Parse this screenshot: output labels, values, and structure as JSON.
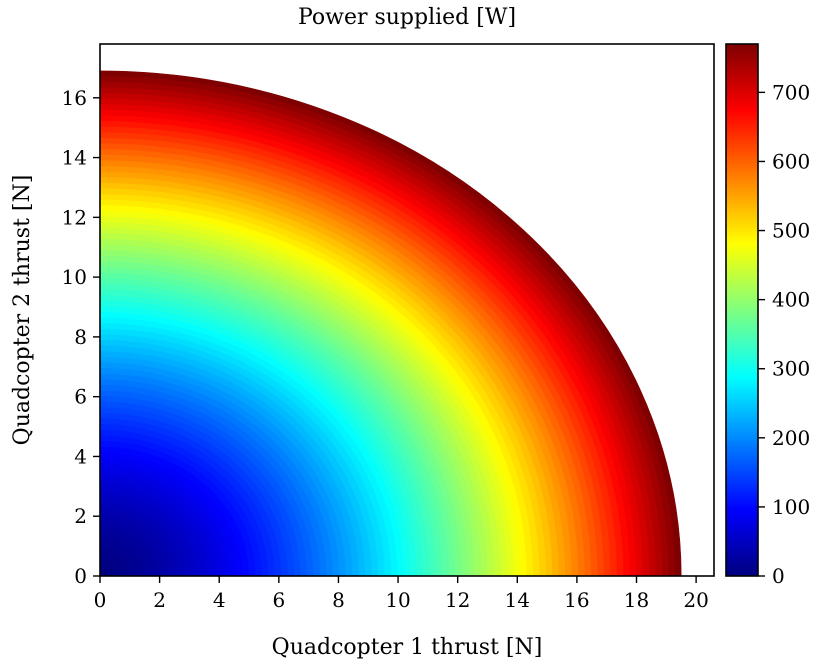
{
  "chart_data": {
    "type": "heatmap",
    "title": "Power supplied [W]",
    "xlabel": "Quadcopter 1 thrust [N]",
    "ylabel": "Quadcopter 2 thrust [N]",
    "xlim": [
      0,
      20.6
    ],
    "ylim": [
      0,
      17.8
    ],
    "x_ticks": [
      0,
      2,
      4,
      6,
      8,
      10,
      12,
      14,
      16,
      18,
      20
    ],
    "y_ticks": [
      0,
      2,
      4,
      6,
      8,
      10,
      12,
      14,
      16
    ],
    "x_tick_labels": [
      "0",
      "2",
      "4",
      "6",
      "8",
      "10",
      "12",
      "14",
      "16",
      "18",
      "20"
    ],
    "y_tick_labels": [
      "0",
      "2",
      "4",
      "6",
      "8",
      "10",
      "12",
      "14",
      "16"
    ],
    "boundary": {
      "x_thrust_max": 19.5,
      "y_thrust_max": 16.9
    },
    "power_at_max_thrust": 770,
    "colorbar": {
      "colormap": "jet",
      "range": [
        0,
        770
      ],
      "ticks": [
        0,
        100,
        200,
        300,
        400,
        500,
        600,
        700
      ],
      "tick_labels": [
        "0",
        "100",
        "200",
        "300",
        "400",
        "500",
        "600",
        "700"
      ]
    },
    "grid": false
  },
  "colors": {
    "jet": [
      "#00007f",
      "#0000ff",
      "#007fff",
      "#00ffff",
      "#7fff7f",
      "#ffff00",
      "#ff7f00",
      "#ff0000",
      "#7f0000"
    ]
  }
}
